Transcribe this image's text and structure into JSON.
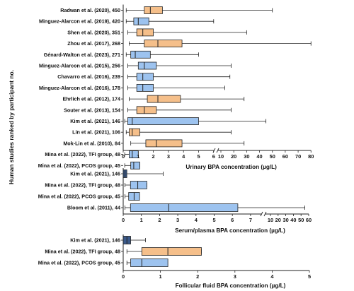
{
  "y_axis_title": "Human studies ranked by participant no.",
  "colors": {
    "blue": "#9dc3ef",
    "orange": "#f5bf8a",
    "dark": "#3b5a8a"
  },
  "chart_data": [
    {
      "type": "boxplot",
      "xlabel": "Urinary BPA concentration (µg/L)",
      "axis_break": {
        "from": 6,
        "to": 10
      },
      "ticks": [
        "0",
        "1",
        "2",
        "3",
        "4",
        "5",
        "6",
        "10",
        "20",
        "30",
        "40",
        "50",
        "60",
        "70",
        "80"
      ],
      "rows": [
        {
          "label": "Radwan et al. (2020), 450",
          "color": "orange",
          "min": 0.2,
          "q1": 1.4,
          "median": 1.8,
          "q3": 2.6,
          "max": 50
        },
        {
          "label": "Minguez-Alarcon et al. (2019), 420",
          "color": "blue",
          "min": 0.2,
          "q1": 0.7,
          "median": 1.0,
          "q3": 1.7,
          "max": 6
        },
        {
          "label": "Shen et al. (2020), 351",
          "color": "orange",
          "min": 0.3,
          "q1": 0.9,
          "median": 1.3,
          "q3": 2.0,
          "max": 30
        },
        {
          "label": "Zhou et al. (2017), 268",
          "color": "orange",
          "min": 0.4,
          "q1": 1.4,
          "median": 2.3,
          "q3": 3.9,
          "max": 80
        },
        {
          "label": "Génard-Walton et al. (2023), 271",
          "color": "blue",
          "min": 0.2,
          "q1": 0.5,
          "median": 0.8,
          "q3": 1.8,
          "max": 5
        },
        {
          "label": "Minguez-Alarcon et al. (2015), 256",
          "color": "blue",
          "min": 0.3,
          "q1": 1.0,
          "median": 1.4,
          "q3": 2.2,
          "max": 18
        },
        {
          "label": "Chavarro et al. (2016), 239",
          "color": "blue",
          "min": 0.3,
          "q1": 0.9,
          "median": 1.3,
          "q3": 2.0,
          "max": 17
        },
        {
          "label": "Minguez-Alarcon et al. (2016), 178",
          "color": "blue",
          "min": 0.3,
          "q1": 0.9,
          "median": 1.3,
          "q3": 2.0,
          "max": 13
        },
        {
          "label": "Ehrlich et al. (2012), 174",
          "color": "orange",
          "min": 0.4,
          "q1": 1.6,
          "median": 2.3,
          "q3": 3.8,
          "max": 28
        },
        {
          "label": "Souter et al. (2013), 154",
          "color": "orange",
          "min": 0.3,
          "q1": 0.9,
          "median": 1.4,
          "q3": 2.2,
          "max": 18
        },
        {
          "label": "Kim et al. (2021), 146",
          "color": "blue",
          "min": 0.1,
          "q1": 0.3,
          "median": 0.6,
          "q3": 5.0,
          "max": 45
        },
        {
          "label": "Lin et al. (2021), 106",
          "color": "orange",
          "min": 0.2,
          "q1": 0.4,
          "median": 0.6,
          "q3": 1.1,
          "max": 18
        },
        {
          "label": "Mok-Lin et al. (2010), 84",
          "color": "orange",
          "min": 0.5,
          "q1": 1.5,
          "median": 2.2,
          "q3": 3.9,
          "max": 28
        },
        {
          "label": "Mina et al. (2022), TFI group, 48",
          "color": "blue",
          "min": 0.1,
          "q1": 0.4,
          "median": 0.6,
          "q3": 1.0,
          "max": 1.0
        },
        {
          "label": "Mina et al. (2022), PCOS group, 45",
          "color": "blue",
          "min": 0.1,
          "q1": 0.5,
          "median": 0.7,
          "q3": 1.1,
          "max": 1.1
        }
      ]
    },
    {
      "type": "boxplot",
      "xlabel": "Serum/plasma BPA concentration (µg/L)",
      "axis_break": {
        "from": 7,
        "to": 10
      },
      "ticks": [
        "0",
        "1",
        "2",
        "3",
        "4",
        "5",
        "6",
        "7",
        "10",
        "20",
        "30",
        "40",
        "50",
        "60"
      ],
      "rows": [
        {
          "label": "Kim et al. (2021), 146",
          "color": "dark",
          "min": 0.0,
          "q1": 0.0,
          "median": 0.1,
          "q3": 0.2,
          "max": 2.2
        },
        {
          "label": "Mina et al. (2022), TFI group, 48",
          "color": "blue",
          "min": 0.1,
          "q1": 0.4,
          "median": 0.8,
          "q3": 1.3,
          "max": 1.3
        },
        {
          "label": "Mina et al. (2022), PCOS group, 45",
          "color": "blue",
          "min": 0.1,
          "q1": 0.3,
          "median": 0.6,
          "q3": 0.9,
          "max": 0.9
        },
        {
          "label": "Bloom et al. (2011), 44",
          "color": "blue",
          "min": 0.1,
          "q1": 0.4,
          "median": 2.5,
          "q3": 6.3,
          "max": 55
        }
      ]
    },
    {
      "type": "boxplot",
      "xlabel": "Follicular fluid BPA concentration (µg/L)",
      "ticks": [
        "0",
        "1",
        "2",
        "3",
        "4",
        "5"
      ],
      "rows": [
        {
          "label": "Kim et al. (2021), 146",
          "color": "dark",
          "min": 0.0,
          "q1": 0.0,
          "median": 0.1,
          "q3": 0.2,
          "max": 0.6
        },
        {
          "label": "Mina et al. (2022), TFI group, 48",
          "color": "orange",
          "min": 0.1,
          "q1": 0.5,
          "median": 1.2,
          "q3": 2.1,
          "max": 2.1
        },
        {
          "label": "Mina et al. (2022), PCOS group, 45",
          "color": "blue",
          "min": 0.1,
          "q1": 0.2,
          "median": 0.5,
          "q3": 1.2,
          "max": 1.2
        }
      ]
    }
  ]
}
